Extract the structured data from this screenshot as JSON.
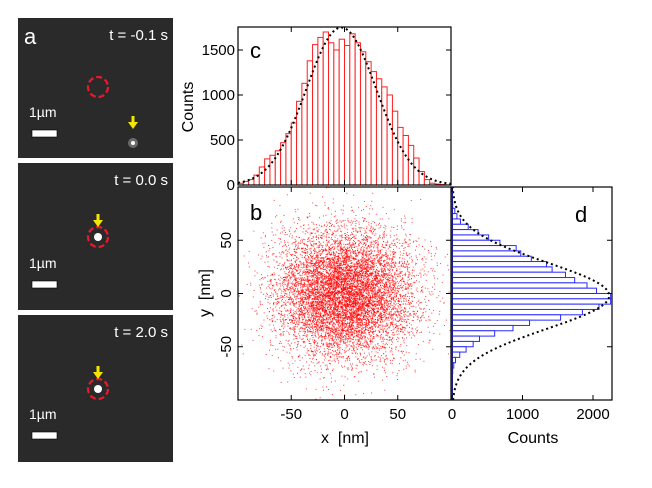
{
  "panel_a": {
    "label": "a",
    "frames": [
      {
        "time": "t = -0.1 s",
        "scale_label": "1µm",
        "spot": "offset"
      },
      {
        "time": "t = 0.0 s",
        "scale_label": "1µm",
        "spot": "centered"
      },
      {
        "time": "t = 2.0 s",
        "scale_label": "1µm",
        "spot": "centered"
      }
    ],
    "colors": {
      "background": "#2a2a2a",
      "circle": "#e8192c",
      "arrow": "#f2e600",
      "scale_bar": "#ffffff"
    }
  },
  "chart_data": [
    {
      "panel": "c",
      "type": "bar",
      "orientation": "vertical",
      "ylabel": "Counts",
      "xlim": [
        -100,
        100
      ],
      "ylim": [
        0,
        1750
      ],
      "yticks": [
        "0",
        "500",
        "1000",
        "1500"
      ],
      "bin_width": 5,
      "values": [
        20,
        40,
        60,
        110,
        200,
        290,
        330,
        380,
        470,
        570,
        690,
        930,
        1130,
        1380,
        1560,
        1640,
        1700,
        1580,
        1500,
        1620,
        1550,
        1680,
        1580,
        1480,
        1370,
        1260,
        1180,
        1090,
        1000,
        820,
        640,
        550,
        440,
        300,
        150,
        60,
        20,
        10,
        5,
        0
      ],
      "fit": {
        "type": "gaussian",
        "amplitude": 1750,
        "mean": -3,
        "sigma": 33,
        "style": "dotted"
      },
      "color": "#ff2020"
    },
    {
      "panel": "b",
      "type": "scatter",
      "xlabel": "x  [nm]",
      "ylabel": "y  [nm]",
      "xlim": [
        -100,
        100
      ],
      "ylim": [
        -100,
        100
      ],
      "xticks": [
        "-50",
        "0",
        "50"
      ],
      "yticks": [
        "-50",
        "0",
        "50"
      ],
      "distribution": {
        "type": "gaussian",
        "mean_x": 0,
        "mean_y": 0,
        "sigma_x": 32,
        "sigma_y": 30
      },
      "color": "#ff0000"
    },
    {
      "panel": "d",
      "type": "bar",
      "orientation": "horizontal",
      "xlabel": "Counts",
      "xlim": [
        0,
        2250
      ],
      "xticks": [
        "0",
        "1000",
        "2000"
      ],
      "ylim": [
        -100,
        100
      ],
      "bin_width": 5,
      "values_top_to_bottom": [
        0,
        0,
        5,
        10,
        40,
        70,
        120,
        230,
        370,
        520,
        680,
        910,
        975,
        1125,
        1340,
        1420,
        1610,
        1740,
        1915,
        2050,
        2250,
        2250,
        2085,
        1850,
        1540,
        1100,
        865,
        605,
        390,
        300,
        200,
        110,
        50,
        25,
        10,
        5,
        0,
        0,
        0,
        0
      ],
      "fit": {
        "type": "gaussian",
        "amplitude": 2230,
        "mean": -2,
        "sigma": 31,
        "style": "dotted"
      },
      "color": "#2a2aff"
    }
  ],
  "labels": {
    "c": "c",
    "b": "b",
    "d": "d"
  }
}
